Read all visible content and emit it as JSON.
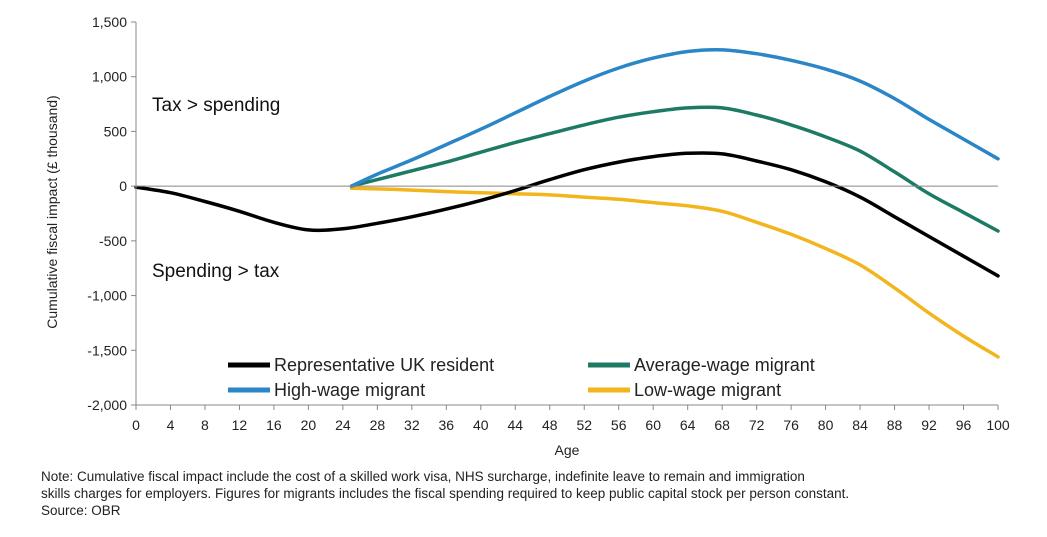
{
  "chart_data": {
    "type": "line",
    "xlabel": "Age",
    "ylabel": "Cumulative fiscal impact (£ thousand)",
    "xlim": [
      0,
      100
    ],
    "ylim": [
      -2000,
      1500
    ],
    "x_ticks": [
      "0",
      "4",
      "8",
      "12",
      "16",
      "20",
      "24",
      "28",
      "32",
      "36",
      "40",
      "44",
      "48",
      "52",
      "56",
      "60",
      "64",
      "68",
      "72",
      "76",
      "80",
      "84",
      "88",
      "92",
      "96",
      "100"
    ],
    "y_ticks": [
      "1,500",
      "1,000",
      "500",
      "0",
      "-500",
      "-1,000",
      "-1,500",
      "-2,000"
    ],
    "y_tick_values": [
      1500,
      1000,
      500,
      0,
      -500,
      -1000,
      -1500,
      -2000
    ],
    "grid": false,
    "legend_position": "bottom-center",
    "annotations": [
      {
        "text": "Tax > spending",
        "x": 3,
        "y": 730
      },
      {
        "text": "Spending > tax",
        "x": 3,
        "y": -770
      }
    ],
    "series": [
      {
        "name": "Representative UK resident",
        "color": "#000000",
        "points": [
          [
            0,
            -10
          ],
          [
            4,
            -60
          ],
          [
            8,
            -140
          ],
          [
            12,
            -230
          ],
          [
            16,
            -330
          ],
          [
            20,
            -400
          ],
          [
            24,
            -390
          ],
          [
            28,
            -340
          ],
          [
            32,
            -280
          ],
          [
            36,
            -210
          ],
          [
            40,
            -130
          ],
          [
            44,
            -40
          ],
          [
            48,
            60
          ],
          [
            52,
            150
          ],
          [
            56,
            220
          ],
          [
            60,
            270
          ],
          [
            64,
            300
          ],
          [
            68,
            295
          ],
          [
            72,
            230
          ],
          [
            76,
            150
          ],
          [
            80,
            40
          ],
          [
            84,
            -100
          ],
          [
            88,
            -280
          ],
          [
            92,
            -460
          ],
          [
            96,
            -640
          ],
          [
            100,
            -820
          ]
        ]
      },
      {
        "name": "Average-wage migrant",
        "color": "#1d7a64",
        "points": [
          [
            25,
            0
          ],
          [
            28,
            60
          ],
          [
            32,
            140
          ],
          [
            36,
            220
          ],
          [
            40,
            310
          ],
          [
            44,
            400
          ],
          [
            48,
            480
          ],
          [
            52,
            560
          ],
          [
            56,
            630
          ],
          [
            60,
            680
          ],
          [
            64,
            715
          ],
          [
            68,
            715
          ],
          [
            72,
            650
          ],
          [
            76,
            560
          ],
          [
            80,
            450
          ],
          [
            84,
            320
          ],
          [
            88,
            130
          ],
          [
            92,
            -70
          ],
          [
            96,
            -240
          ],
          [
            100,
            -410
          ]
        ]
      },
      {
        "name": "High-wage migrant",
        "color": "#2a86c6",
        "points": [
          [
            25,
            0
          ],
          [
            28,
            110
          ],
          [
            32,
            240
          ],
          [
            36,
            380
          ],
          [
            40,
            520
          ],
          [
            44,
            670
          ],
          [
            48,
            820
          ],
          [
            52,
            960
          ],
          [
            56,
            1080
          ],
          [
            60,
            1170
          ],
          [
            64,
            1230
          ],
          [
            68,
            1245
          ],
          [
            72,
            1210
          ],
          [
            76,
            1150
          ],
          [
            80,
            1070
          ],
          [
            84,
            960
          ],
          [
            88,
            800
          ],
          [
            92,
            610
          ],
          [
            96,
            430
          ],
          [
            100,
            250
          ]
        ]
      },
      {
        "name": "Low-wage migrant",
        "color": "#f2b51d",
        "points": [
          [
            25,
            -20
          ],
          [
            30,
            -30
          ],
          [
            36,
            -50
          ],
          [
            40,
            -60
          ],
          [
            44,
            -70
          ],
          [
            48,
            -80
          ],
          [
            52,
            -100
          ],
          [
            56,
            -120
          ],
          [
            60,
            -150
          ],
          [
            64,
            -180
          ],
          [
            68,
            -230
          ],
          [
            72,
            -330
          ],
          [
            76,
            -440
          ],
          [
            80,
            -570
          ],
          [
            84,
            -720
          ],
          [
            88,
            -930
          ],
          [
            92,
            -1160
          ],
          [
            96,
            -1370
          ],
          [
            100,
            -1560
          ]
        ]
      }
    ]
  },
  "note": {
    "line1": "Note: Cumulative fiscal impact include the cost of a skilled work visa, NHS surcharge, indefinite leave to remain and immigration",
    "line2": "skills charges for employers. Figures for migrants includes the fiscal spending required to keep public capital stock per person constant.",
    "source": "Source: OBR"
  }
}
